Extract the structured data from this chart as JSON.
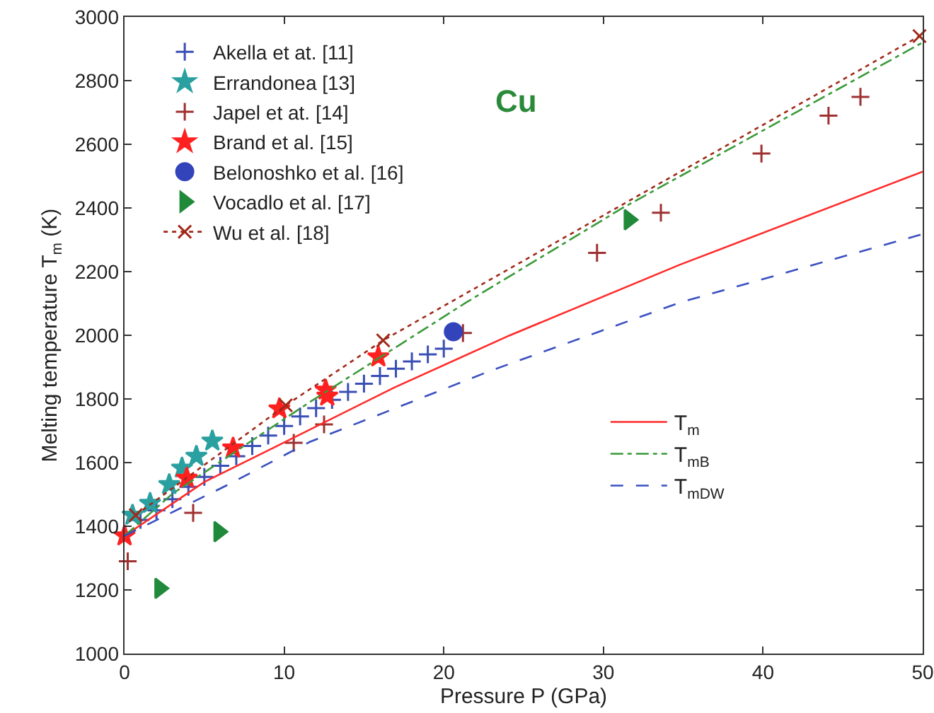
{
  "chart_data": {
    "type": "scatter",
    "xlabel": "Pressure P (GPa)",
    "ylabel": "Melting temperature T$_{m}$ (K)",
    "annotations": [
      "Cu"
    ],
    "xlim": [
      0,
      50
    ],
    "xticks": [
      0,
      10,
      20,
      30,
      40,
      50
    ],
    "ylim": [
      1000,
      3000
    ],
    "yticks": [
      1000,
      1200,
      1400,
      1600,
      1800,
      2000,
      2200,
      2400,
      2600,
      2800,
      3000
    ],
    "grid": false,
    "legend": "top left",
    "series": [
      {
        "name": "Akella et at. [11]",
        "marker": "cross",
        "color": "#3a4fb5",
        "x": [
          1,
          2,
          3,
          4,
          5,
          6,
          7,
          8,
          9,
          10,
          11,
          12,
          13,
          14,
          15,
          16,
          17,
          18,
          19,
          20
        ],
        "values": [
          1420,
          1450,
          1485,
          1524,
          1555,
          1590,
          1620,
          1652,
          1685,
          1715,
          1745,
          1771,
          1797,
          1822,
          1848,
          1872,
          1895,
          1918,
          1940,
          1958
        ]
      },
      {
        "name": "Errandonea [13]",
        "marker": "star",
        "color": "#2aa0a0",
        "x": [
          0.5,
          1.6,
          2.8,
          3.6,
          4.5,
          5.5
        ],
        "values": [
          1435,
          1472,
          1531,
          1583,
          1620,
          1668
        ]
      },
      {
        "name": "Japel et at. [14]",
        "marker": "cross",
        "color": "#a03030",
        "x": [
          0.2,
          4.3,
          10.6,
          12.5,
          21.2,
          29.6,
          33.6,
          39.9,
          44.1,
          46.1
        ],
        "values": [
          1290,
          1442,
          1662,
          1720,
          2007,
          2259,
          2385,
          2571,
          2690,
          2749
        ]
      },
      {
        "name": "Brand et al. [15]",
        "marker": "star",
        "color": "#ff2020",
        "x": [
          0,
          3.9,
          6.8,
          9.7,
          12.6,
          12.7,
          15.9
        ],
        "values": [
          1370,
          1551,
          1646,
          1769,
          1828,
          1809,
          1932
        ]
      },
      {
        "name": "Belonoshko et al. [16]",
        "marker": "circle",
        "color": "#3344bb",
        "x": [
          20.6
        ],
        "values": [
          2011
        ]
      },
      {
        "name": "Vocadlo et al. [17]",
        "marker": "triangle",
        "color": "#208a3a",
        "x": [
          2.2,
          5.9,
          31.6
        ],
        "values": [
          1205,
          1383,
          2363
        ]
      },
      {
        "name": "Wu et al. [18]",
        "type": "line",
        "marker": "cross",
        "line_style": "dotted",
        "color": "#a02a1a",
        "x": [
          0.7,
          10.1,
          16.2,
          49.8
        ],
        "values": [
          1435,
          1780,
          1984,
          2940
        ]
      },
      {
        "name": "T$_{m}$",
        "type": "line",
        "marker": "none",
        "line_style": "solid",
        "color": "#ff2a2a",
        "x": [
          0,
          5,
          8.9,
          16.9,
          24.1,
          34.8,
          50
        ],
        "values": [
          1370,
          1539,
          1636,
          1836,
          1999,
          2222,
          2514
        ]
      },
      {
        "name": "T$_{mB}$",
        "type": "line",
        "marker": "none",
        "line_style": "dashdot",
        "color": "#3a9a3a",
        "x": [
          0,
          3,
          8.9,
          11.6,
          21.4,
          31.2,
          50
        ],
        "values": [
          1370,
          1502,
          1700,
          1790,
          2103,
          2400,
          2920
        ]
      },
      {
        "name": "T$_{mDW}$",
        "type": "line",
        "marker": "none",
        "line_style": "dashed",
        "color": "#3a50c0",
        "x": [
          0,
          6.5,
          11.6,
          22.9,
          34.8,
          50
        ],
        "values": [
          1370,
          1531,
          1665,
          1888,
          2103,
          2318
        ]
      }
    ]
  }
}
